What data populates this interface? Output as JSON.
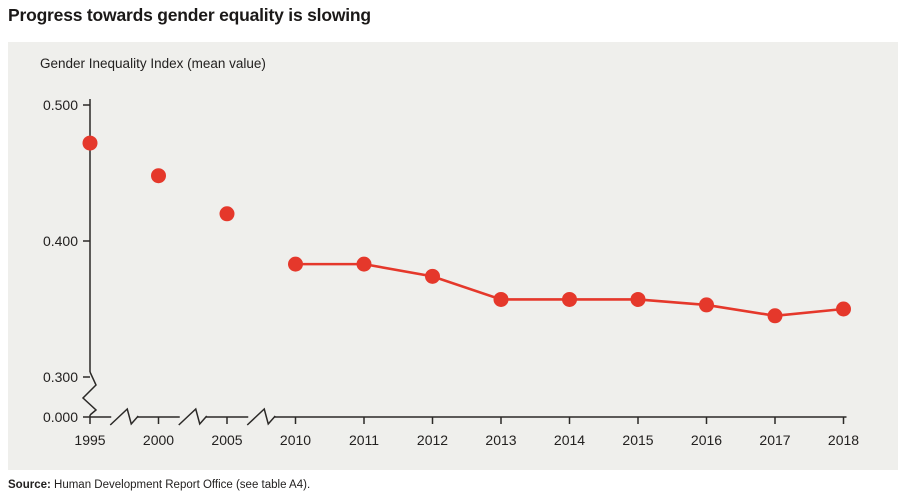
{
  "page": {
    "title": "Progress towards gender equality is slowing",
    "source_label": "Source:",
    "source_text": " Human Development Report Office (see table A4)."
  },
  "chart_data": {
    "type": "line",
    "title": "Gender Inequality Index (mean value)",
    "categories": [
      "1995",
      "2000",
      "2005",
      "2010",
      "2011",
      "2012",
      "2013",
      "2014",
      "2015",
      "2016",
      "2017",
      "2018"
    ],
    "values": [
      0.472,
      0.448,
      0.42,
      0.383,
      0.383,
      0.374,
      0.357,
      0.357,
      0.357,
      0.353,
      0.345,
      0.35
    ],
    "connected_from_category": "2010",
    "unconnected_categories": [
      "1995",
      "2000",
      "2005"
    ],
    "xlabel": "",
    "ylabel": "Gender Inequality Index (mean value)",
    "ylim": [
      0.0,
      0.5
    ],
    "y_axis": {
      "tick_labels": [
        "0.500",
        "0.400",
        "0.300",
        "0.000"
      ],
      "tick_values": [
        0.5,
        0.4,
        0.3,
        0.0
      ],
      "break_between": [
        "0.300",
        "0.000"
      ]
    },
    "x_axis": {
      "breaks_between": [
        [
          "1995",
          "2000"
        ],
        [
          "2000",
          "2005"
        ],
        [
          "2005",
          "2010"
        ]
      ]
    },
    "grid": false,
    "legend_position": "none",
    "colors": {
      "point": "#e5382b",
      "line": "#e5382b",
      "axis": "#2b2927",
      "panel_bg": "#efefec",
      "text": "#232120"
    }
  }
}
